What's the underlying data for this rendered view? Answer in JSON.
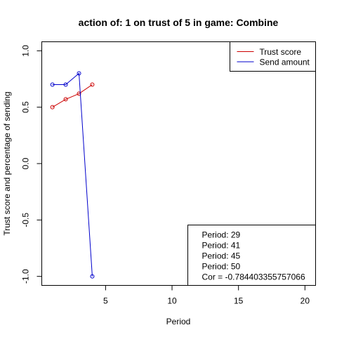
{
  "chart_data": {
    "type": "line",
    "title": "action of:  1  on trust of  5 in game:  Combine",
    "xlabel": "Period",
    "ylabel": "Trust score and percentage of sending",
    "xlim": [
      0.2,
      20.8
    ],
    "ylim": [
      -1.08,
      1.08
    ],
    "x_ticks": [
      5,
      10,
      15,
      20
    ],
    "y_ticks": [
      -1.0,
      -0.5,
      0.0,
      0.5,
      1.0
    ],
    "x_tick_labels": [
      "5",
      "10",
      "15",
      "20"
    ],
    "y_tick_labels": [
      "-1.0",
      "-0.5",
      "0.0",
      "0.5",
      "1.0"
    ],
    "grid": false,
    "legend_position": "top-right",
    "series": [
      {
        "name": "Trust score",
        "color": "#cc0000",
        "x": [
          1,
          2,
          3,
          4
        ],
        "values": [
          0.5,
          0.57,
          0.62,
          0.7
        ]
      },
      {
        "name": "Send amount",
        "color": "#0000cc",
        "x": [
          1,
          2,
          3,
          4
        ],
        "values": [
          0.7,
          0.7,
          0.8,
          -1.0
        ]
      }
    ],
    "info_box": {
      "position": "bottom-right",
      "lines": [
        "Period:  29",
        "Period:  41",
        "Period:  45",
        "Period:  50",
        "Cor =  -0.784403355757066"
      ]
    }
  }
}
